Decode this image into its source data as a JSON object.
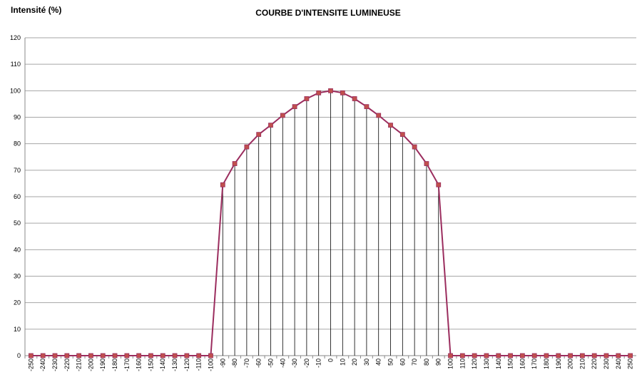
{
  "chart_data": {
    "type": "line",
    "title": "COURBE D'INTENSITE LUMINEUSE",
    "y_label": "Intensité (%)",
    "categories": [
      "-250",
      "-240",
      "-230",
      "-220",
      "-210",
      "-200",
      "-190",
      "-180",
      "-170",
      "-160",
      "-150",
      "-140",
      "-130",
      "-120",
      "-110",
      "-100",
      "-90",
      "-80",
      "-70",
      "-60",
      "-50",
      "-40",
      "-30",
      "-20",
      "-10",
      "0",
      "10",
      "20",
      "30",
      "40",
      "50",
      "60",
      "70",
      "80",
      "90",
      "100",
      "110",
      "120",
      "130",
      "140",
      "150",
      "160",
      "170",
      "180",
      "190",
      "200",
      "210",
      "220",
      "230",
      "240",
      "250"
    ],
    "values": [
      0,
      0,
      0,
      0,
      0,
      0,
      0,
      0,
      0,
      0,
      0,
      0,
      0,
      0,
      0,
      0,
      64.5,
      72.5,
      78.8,
      83.5,
      87,
      90.7,
      94,
      97,
      99.2,
      100,
      99.2,
      97,
      94,
      90.7,
      87,
      83.5,
      78.8,
      72.5,
      64.5,
      0,
      0,
      0,
      0,
      0,
      0,
      0,
      0,
      0,
      0,
      0,
      0,
      0,
      0,
      0,
      0
    ],
    "color": "#9b2d5e",
    "marker_color": "#c0504d",
    "drop_lines": true,
    "ylim": [
      0,
      120
    ],
    "yticks": [
      0,
      10,
      20,
      30,
      40,
      50,
      60,
      70,
      80,
      90,
      100,
      110,
      120
    ],
    "grid": true
  }
}
